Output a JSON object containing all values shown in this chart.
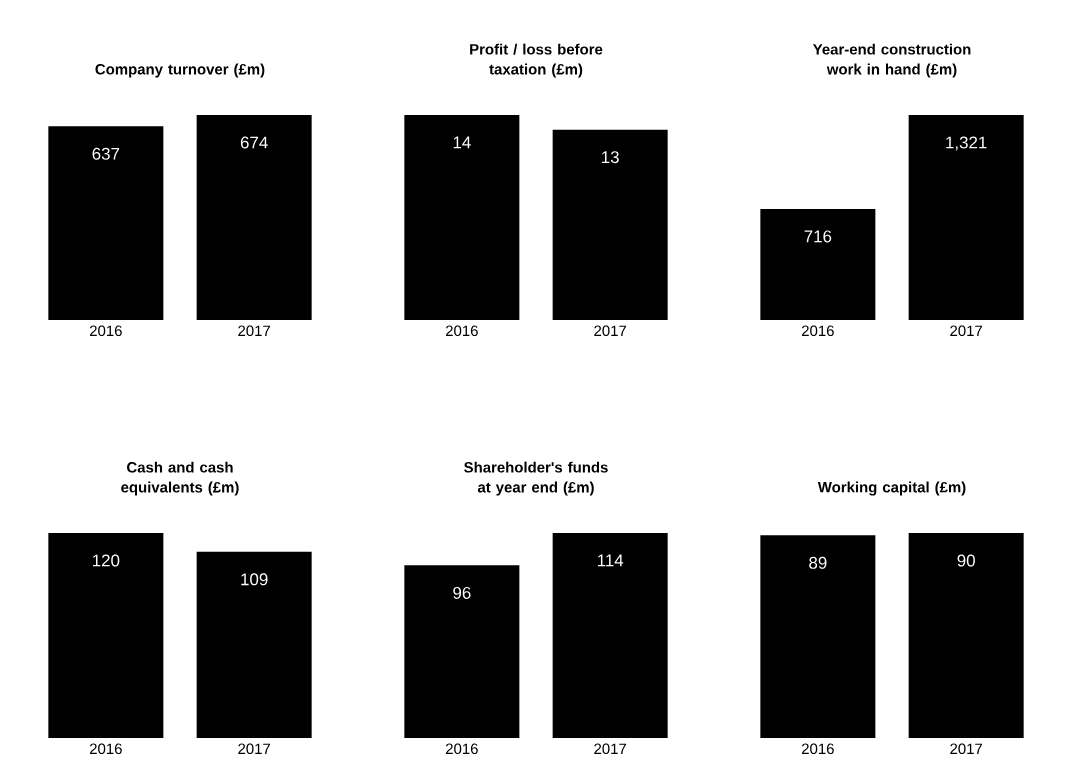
{
  "chart_data": [
    {
      "type": "bar",
      "title": "Company turnover (£m)",
      "categories": [
        "2016",
        "2017"
      ],
      "values": [
        637,
        674
      ],
      "value_labels": [
        "637",
        "674"
      ],
      "color": "#000000"
    },
    {
      "type": "bar",
      "title": "Profit / loss before taxation (£m)",
      "categories": [
        "2016",
        "2017"
      ],
      "values": [
        14,
        13
      ],
      "value_labels": [
        "14",
        "13"
      ],
      "color": "#000000"
    },
    {
      "type": "bar",
      "title": "Year-end construction work in hand (£m)",
      "categories": [
        "2016",
        "2017"
      ],
      "values": [
        716,
        1321
      ],
      "value_labels": [
        "716",
        "1,321"
      ],
      "color": "#000000"
    },
    {
      "type": "bar",
      "title": "Cash and cash equivalents (£m)",
      "categories": [
        "2016",
        "2017"
      ],
      "values": [
        120,
        109
      ],
      "value_labels": [
        "120",
        "109"
      ],
      "color": "#000000"
    },
    {
      "type": "bar",
      "title": "Shareholder's funds at year end (£m)",
      "categories": [
        "2016",
        "2017"
      ],
      "values": [
        96,
        114
      ],
      "value_labels": [
        "96",
        "114"
      ],
      "color": "#000000"
    },
    {
      "type": "bar",
      "title": "Working capital (£m)",
      "categories": [
        "2016",
        "2017"
      ],
      "values": [
        89,
        90
      ],
      "value_labels": [
        "89",
        "90"
      ],
      "color": "#000000"
    }
  ]
}
